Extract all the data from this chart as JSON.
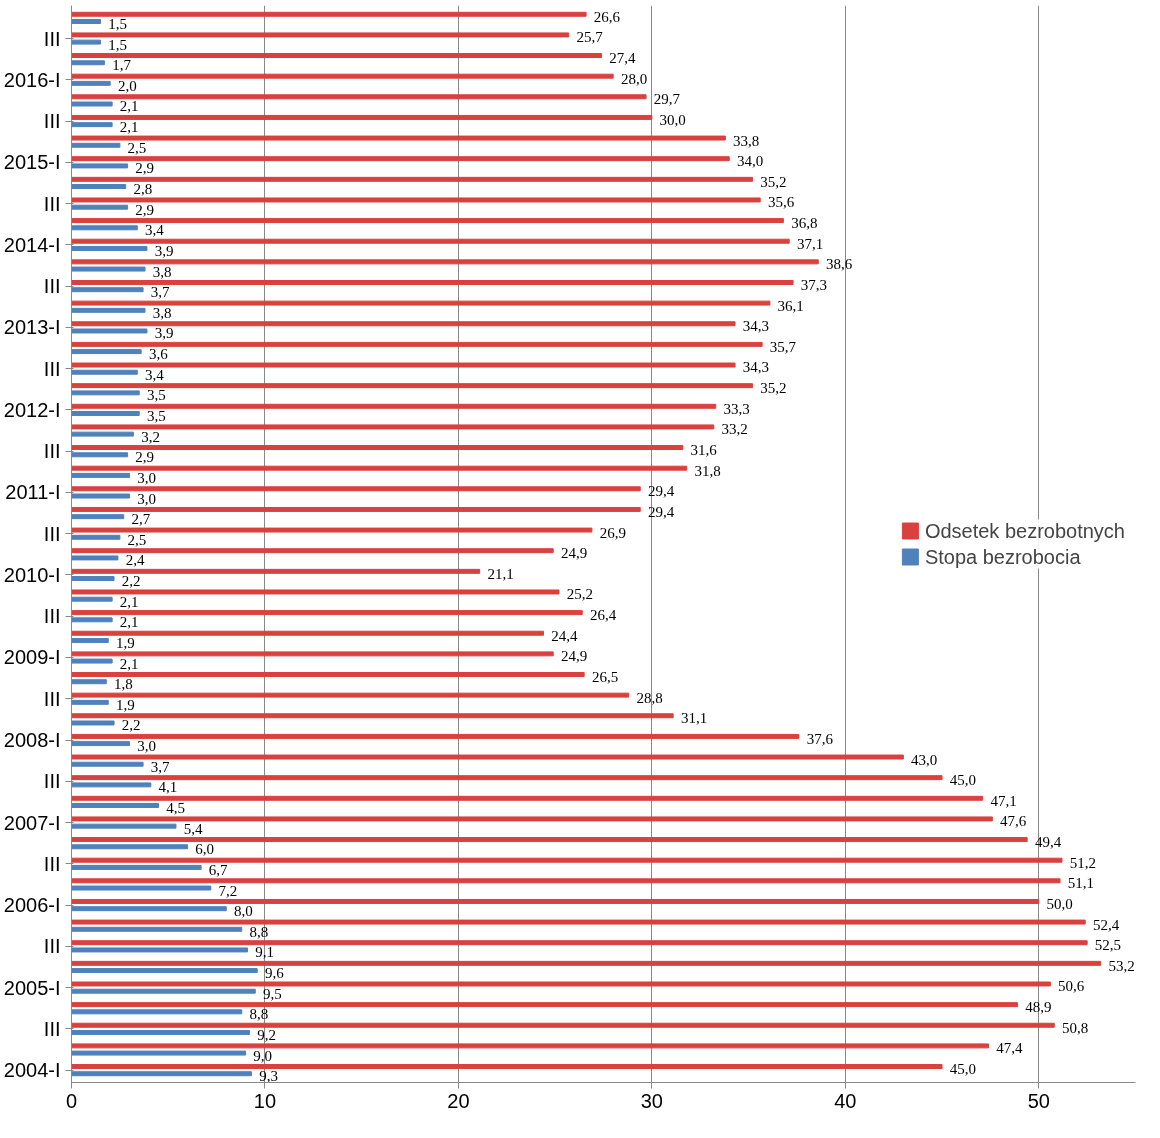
{
  "chart_data": {
    "type": "bar",
    "orientation": "horizontal",
    "categories": [
      null,
      "III",
      null,
      "2016-I",
      null,
      "III",
      null,
      "2015-I",
      null,
      "III",
      null,
      "2014-I",
      null,
      "III",
      null,
      "2013-I",
      null,
      "III",
      null,
      "2012-I",
      null,
      "III",
      null,
      "2011-I",
      null,
      "III",
      null,
      "2010-I",
      null,
      "III",
      null,
      "2009-I",
      null,
      "III",
      null,
      "2008-I",
      null,
      "III",
      null,
      "2007-I",
      null,
      "III",
      null,
      "2006-I",
      null,
      "III",
      null,
      "2005-I",
      null,
      "III",
      null,
      "2004-I"
    ],
    "series": [
      {
        "name": "Odsetek bezrobotnych",
        "color": "#d9413e",
        "values": [
          26.6,
          25.7,
          27.4,
          28.0,
          29.7,
          30.0,
          33.8,
          34.0,
          35.2,
          35.6,
          36.8,
          37.1,
          38.6,
          37.3,
          36.1,
          34.3,
          35.7,
          34.3,
          35.2,
          33.3,
          33.2,
          31.6,
          31.8,
          29.4,
          29.4,
          26.9,
          24.9,
          21.1,
          25.2,
          26.4,
          24.4,
          24.9,
          26.5,
          28.8,
          31.1,
          37.6,
          43.0,
          45.0,
          47.1,
          47.6,
          49.4,
          51.2,
          51.1,
          50.0,
          52.4,
          52.5,
          53.2,
          50.6,
          48.9,
          50.8,
          47.4,
          45.0
        ],
        "value_labels": [
          "26,6",
          "25,7",
          "27,4",
          "28,0",
          "29,7",
          "30,0",
          "33,8",
          "34,0",
          "35,2",
          "35,6",
          "36,8",
          "37,1",
          "38,6",
          "37,3",
          "36,1",
          "34,3",
          "35,7",
          "34,3",
          "35,2",
          "33,3",
          "33,2",
          "31,6",
          "31,8",
          "29,4",
          "29,4",
          "26,9",
          "24,9",
          "21,1",
          "25,2",
          "26,4",
          "24,4",
          "24,9",
          "26,5",
          "28,8",
          "31,1",
          "37,6",
          "43,0",
          "45,0",
          "47,1",
          "47,6",
          "49,4",
          "51,2",
          "51,1",
          "50,0",
          "52,4",
          "52,5",
          "53,2",
          "50,6",
          "48,9",
          "50,8",
          "47,4",
          "45,0"
        ]
      },
      {
        "name": "Stopa bezrobocia",
        "color": "#4f81bd",
        "values": [
          1.5,
          1.5,
          1.7,
          2.0,
          2.1,
          2.1,
          2.5,
          2.9,
          2.8,
          2.9,
          3.4,
          3.9,
          3.8,
          3.7,
          3.8,
          3.9,
          3.6,
          3.4,
          3.5,
          3.5,
          3.2,
          2.9,
          3.0,
          3.0,
          2.7,
          2.5,
          2.4,
          2.2,
          2.1,
          2.1,
          1.9,
          2.1,
          1.8,
          1.9,
          2.2,
          3.0,
          3.7,
          4.1,
          4.5,
          5.4,
          6.0,
          6.7,
          7.2,
          8.0,
          8.8,
          9.1,
          9.6,
          9.5,
          8.8,
          9.2,
          9.0,
          9.3
        ],
        "value_labels": [
          "1,5",
          "1,5",
          "1,7",
          "2,0",
          "2,1",
          "2,1",
          "2,5",
          "2,9",
          "2,8",
          "2,9",
          "3,4",
          "3,9",
          "3,8",
          "3,7",
          "3,8",
          "3,9",
          "3,6",
          "3,4",
          "3,5",
          "3,5",
          "3,2",
          "2,9",
          "3,0",
          "3,0",
          "2,7",
          "2,5",
          "2,4",
          "2,2",
          "2,1",
          "2,1",
          "1,9",
          "2,1",
          "1,8",
          "1,9",
          "2,2",
          "3,0",
          "3,7",
          "4,1",
          "4,5",
          "5,4",
          "6,0",
          "6,7",
          "7,2",
          "8,0",
          "8,8",
          "9,1",
          "9,6",
          "9,5",
          "8,8",
          "9,2",
          "9,0",
          "9,3"
        ]
      }
    ],
    "xlim": [
      0,
      55
    ],
    "xticks": [
      0,
      10,
      20,
      30,
      40,
      50
    ],
    "grid": "x",
    "legend": "right"
  }
}
